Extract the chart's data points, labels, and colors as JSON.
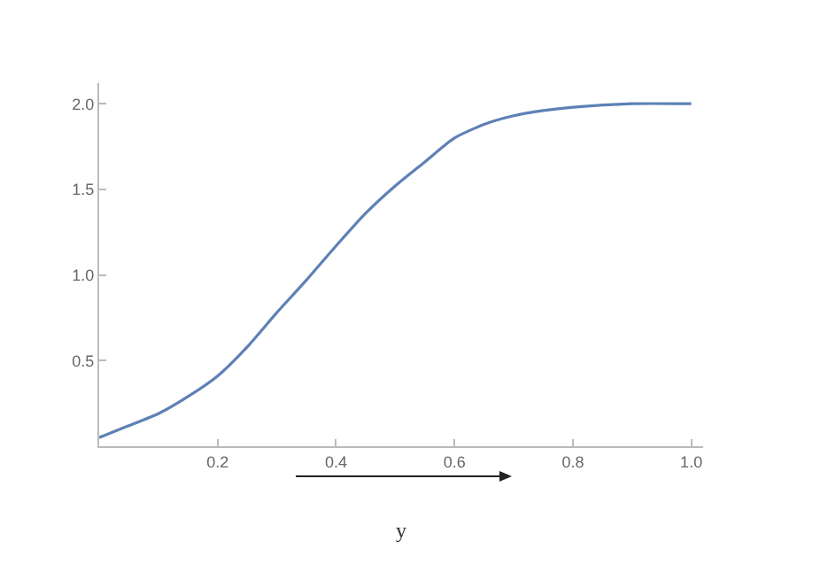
{
  "chart_data": {
    "type": "line",
    "xlabel": "y",
    "x": [
      0,
      0.05,
      0.1,
      0.15,
      0.2,
      0.25,
      0.3,
      0.35,
      0.4,
      0.45,
      0.5,
      0.55,
      0.6,
      0.65,
      0.7,
      0.75,
      0.8,
      0.9,
      1.0
    ],
    "series": [
      {
        "color": "#5e81b5",
        "values": [
          0.05,
          0.12,
          0.19,
          0.29,
          0.41,
          0.58,
          0.78,
          0.97,
          1.17,
          1.36,
          1.52,
          1.66,
          1.8,
          1.88,
          1.93,
          1.96,
          1.98,
          2.0,
          2.0
        ]
      }
    ],
    "xlim": [
      0,
      1.02
    ],
    "ylim": [
      0,
      2.12
    ],
    "xticks": [
      0.2,
      0.4,
      0.6,
      0.8,
      {
        "value": 1,
        "label": "1.0"
      }
    ],
    "yticks": [
      0.5,
      {
        "value": 1,
        "label": "1.0"
      },
      1.5,
      {
        "value": 2,
        "label": "2.0"
      }
    ],
    "marker": "none",
    "line_style": "solid"
  }
}
